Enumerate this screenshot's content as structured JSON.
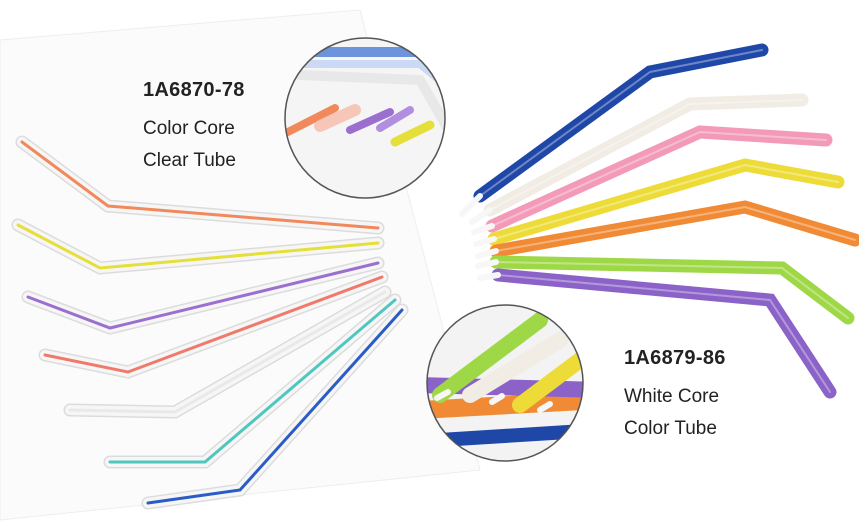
{
  "products": [
    {
      "code": "1A6870-78",
      "line1": "Color Core",
      "line2": "Clear Tube",
      "tube_colors": [
        "#f08a5d",
        "#e6df3a",
        "#9b6fd0",
        "#ef7a6a",
        "#e9e9e9",
        "#4fc7bf",
        "#2a5bc6"
      ]
    },
    {
      "code": "1A6879-86",
      "line1": "White Core",
      "line2": "Color Tube",
      "tube_colors": [
        "#1f47a8",
        "#f1ece4",
        "#f29ab8",
        "#eddc38",
        "#f08a35",
        "#9fd847",
        "#8a62c8"
      ]
    }
  ],
  "colors": {
    "background": "#ffffff",
    "text": "#222222",
    "tip_white": "#f7f7f7"
  }
}
